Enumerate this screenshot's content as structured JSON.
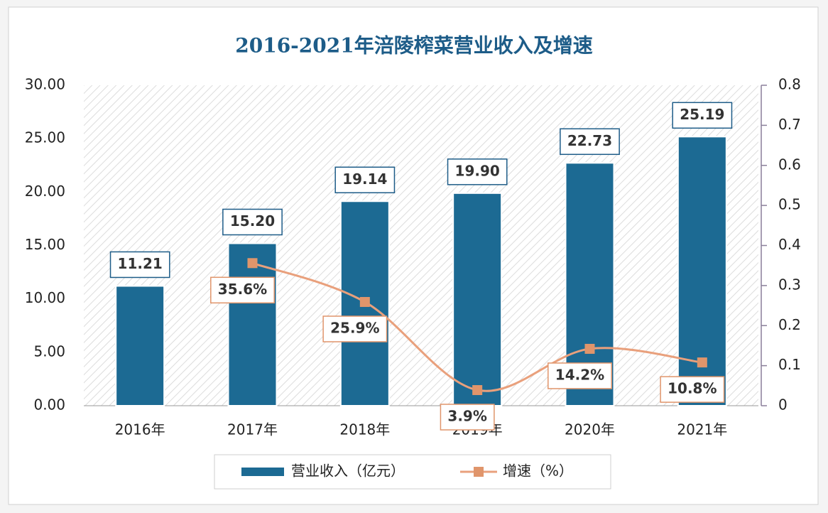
{
  "chart_data": {
    "type": "bar",
    "title": "2016-2021年涪陵榨菜营业收入及增速",
    "categories": [
      "2016年",
      "2017年",
      "2018年",
      "2019年",
      "2020年",
      "2021年"
    ],
    "series": [
      {
        "name": "营业收入（亿元）",
        "color": "#1c6a93",
        "values": [
          11.21,
          15.2,
          19.14,
          19.9,
          22.73,
          25.19
        ],
        "value_labels": [
          "11.21",
          "15.20",
          "19.14",
          "19.90",
          "22.73",
          "25.19"
        ]
      },
      {
        "name": "增速（%）",
        "color": "#e9a07c",
        "type": "line",
        "axis": "y2",
        "values": [
          null,
          0.356,
          0.259,
          0.039,
          0.142,
          0.108
        ],
        "value_labels": [
          null,
          "35.6%",
          "25.9%",
          "3.9%",
          "14.2%",
          "10.8%"
        ]
      }
    ],
    "ylim": [
      0,
      30
    ],
    "yticks": [
      {
        "value": 0,
        "label": "0.00"
      },
      {
        "value": 5,
        "label": "5.00"
      },
      {
        "value": 10,
        "label": "10.00"
      },
      {
        "value": 15,
        "label": "15.00"
      },
      {
        "value": 20,
        "label": "20.00"
      },
      {
        "value": 25,
        "label": "25.00"
      },
      {
        "value": 30,
        "label": "30.00"
      }
    ],
    "y2lim": [
      0,
      0.8
    ],
    "y2ticks": [
      0,
      0.1,
      0.2,
      0.3,
      0.4,
      0.5,
      0.6,
      0.7,
      0.8
    ],
    "legend": "bottom"
  }
}
